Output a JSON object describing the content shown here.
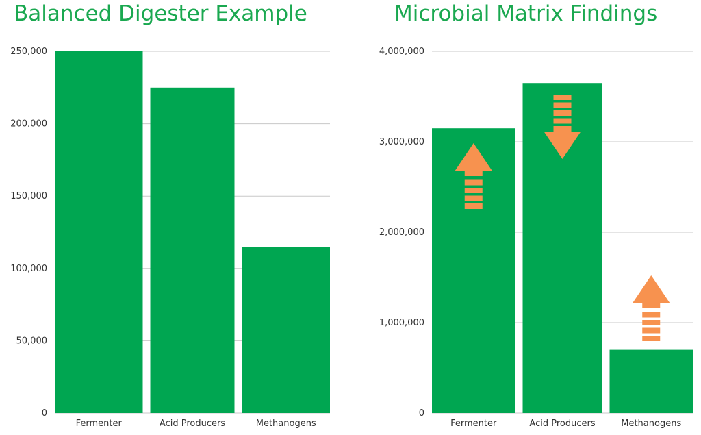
{
  "colors": {
    "bar": "#00a651",
    "title": "#1aa850",
    "grid": "#c8c8c8",
    "arrow": "#f7924f",
    "text": "#333333"
  },
  "chart_data": [
    {
      "type": "bar",
      "title": "Balanced Digester Example",
      "categories": [
        "Fermenter",
        "Acid Producers",
        "Methanogens"
      ],
      "values": [
        250000,
        225000,
        115000
      ],
      "ylim": [
        0,
        250000
      ],
      "yticks": [
        0,
        50000,
        100000,
        150000,
        200000,
        250000
      ],
      "ytick_labels": [
        "0",
        "50,000",
        "100,000",
        "150,000",
        "200,000",
        "250,000"
      ],
      "grid": true,
      "legend": "none"
    },
    {
      "type": "bar",
      "title": "Microbial Matrix Findings",
      "categories": [
        "Fermenter",
        "Acid Producers",
        "Methanogens"
      ],
      "values": [
        3150000,
        3650000,
        700000
      ],
      "ylim": [
        0,
        4000000
      ],
      "yticks": [
        0,
        1000000,
        2000000,
        3000000,
        4000000
      ],
      "ytick_labels": [
        "0",
        "1,000,000",
        "2,000,000",
        "3,000,000",
        "4,000,000"
      ],
      "grid": true,
      "legend": "none",
      "annotations": [
        {
          "category": "Fermenter",
          "shape": "arrow",
          "direction": "up"
        },
        {
          "category": "Acid Producers",
          "shape": "arrow",
          "direction": "down"
        },
        {
          "category": "Methanogens",
          "shape": "arrow",
          "direction": "up"
        }
      ]
    }
  ]
}
